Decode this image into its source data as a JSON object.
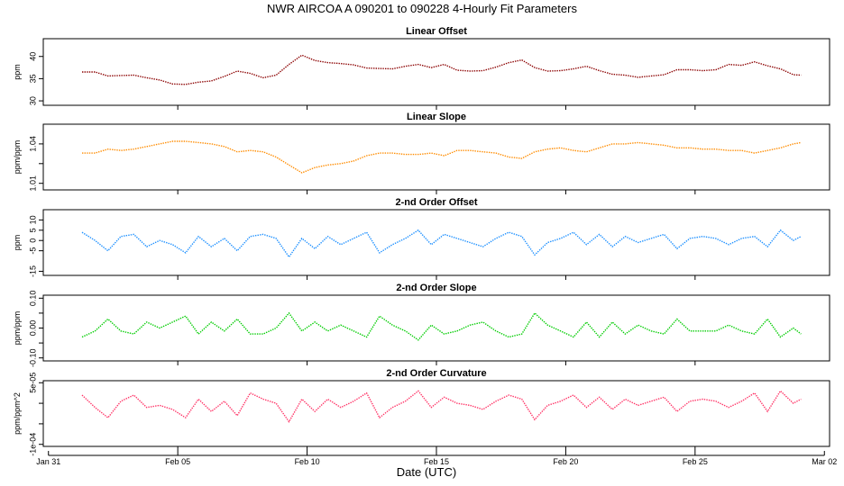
{
  "title": "NWR   AIRCOA A   090201 to 090228   4-Hourly Fit Parameters",
  "x_axis": {
    "label": "Date (UTC)",
    "ticks": [
      "Jan 31",
      "Feb 05",
      "Feb 10",
      "Feb 15",
      "Feb 20",
      "Feb 25",
      "Mar 02"
    ],
    "tick_days": [
      0,
      5,
      10,
      15,
      20,
      25,
      30
    ],
    "xlim": [
      -0.2,
      30.2
    ]
  },
  "chart_data": [
    {
      "type": "line",
      "title": "Linear Offset",
      "ylabel": "ppm",
      "color": "#8b0000",
      "ylim": [
        29,
        44
      ],
      "yticks": [
        30,
        35,
        40
      ],
      "ytick_labels": [
        "30",
        "35",
        "40"
      ],
      "x": [
        1.3,
        1.8,
        2.3,
        2.8,
        3.3,
        3.8,
        4.3,
        4.8,
        5.3,
        5.8,
        6.3,
        6.8,
        7.3,
        7.8,
        8.3,
        8.8,
        9.3,
        9.8,
        10.3,
        10.8,
        11.3,
        11.8,
        12.3,
        12.8,
        13.3,
        13.8,
        14.3,
        14.8,
        15.3,
        15.8,
        16.3,
        16.8,
        17.3,
        17.8,
        18.3,
        18.8,
        19.3,
        19.8,
        20.3,
        20.8,
        21.3,
        21.8,
        22.3,
        22.8,
        23.3,
        23.8,
        24.3,
        24.8,
        25.3,
        25.8,
        26.3,
        26.8,
        27.3,
        27.8,
        28.3,
        28.8,
        29.1
      ],
      "values": [
        36.5,
        36.5,
        35.6,
        35.7,
        35.8,
        35.2,
        34.7,
        33.8,
        33.7,
        34.2,
        34.5,
        35.5,
        36.7,
        36.2,
        35.2,
        35.8,
        38.2,
        40.3,
        39.1,
        38.6,
        38.4,
        38.1,
        37.4,
        37.3,
        37.2,
        37.8,
        38.2,
        37.5,
        38.2,
        36.9,
        36.7,
        36.8,
        37.6,
        38.6,
        39.2,
        37.5,
        36.7,
        36.8,
        37.2,
        37.8,
        36.8,
        36.0,
        35.8,
        35.3,
        35.6,
        35.9,
        37.0,
        37.0,
        36.8,
        37.0,
        38.2,
        38.0,
        38.8,
        37.9,
        37.2,
        35.9,
        35.8
      ]
    },
    {
      "type": "line",
      "title": "Linear Slope",
      "ylabel": "ppm/ppm",
      "color": "#ff8c00",
      "ylim": [
        1.005,
        1.055
      ],
      "yticks": [
        1.01,
        1.025,
        1.04
      ],
      "ytick_labels": [
        "1.01",
        "",
        "1.04"
      ],
      "x": [
        1.3,
        1.8,
        2.3,
        2.8,
        3.3,
        3.8,
        4.3,
        4.8,
        5.3,
        5.8,
        6.3,
        6.8,
        7.3,
        7.8,
        8.3,
        8.8,
        9.3,
        9.8,
        10.3,
        10.8,
        11.3,
        11.8,
        12.3,
        12.8,
        13.3,
        13.8,
        14.3,
        14.8,
        15.3,
        15.8,
        16.3,
        16.8,
        17.3,
        17.8,
        18.3,
        18.8,
        19.3,
        19.8,
        20.3,
        20.8,
        21.3,
        21.8,
        22.3,
        22.8,
        23.3,
        23.8,
        24.3,
        24.8,
        25.3,
        25.8,
        26.3,
        26.8,
        27.3,
        27.8,
        28.3,
        28.8,
        29.1
      ],
      "values": [
        1.033,
        1.033,
        1.036,
        1.035,
        1.036,
        1.038,
        1.04,
        1.042,
        1.042,
        1.041,
        1.04,
        1.038,
        1.034,
        1.035,
        1.034,
        1.03,
        1.024,
        1.018,
        1.022,
        1.024,
        1.025,
        1.027,
        1.031,
        1.033,
        1.033,
        1.032,
        1.032,
        1.033,
        1.031,
        1.035,
        1.035,
        1.034,
        1.033,
        1.03,
        1.029,
        1.034,
        1.036,
        1.037,
        1.035,
        1.034,
        1.037,
        1.04,
        1.04,
        1.041,
        1.04,
        1.039,
        1.037,
        1.037,
        1.036,
        1.036,
        1.035,
        1.035,
        1.033,
        1.035,
        1.037,
        1.04,
        1.041
      ]
    },
    {
      "type": "line",
      "title": "2-nd Order Offset",
      "ylabel": "ppm",
      "color": "#1e90ff",
      "ylim": [
        -17,
        15
      ],
      "yticks": [
        -15,
        -5,
        0,
        5,
        10
      ],
      "ytick_labels": [
        "-15",
        "-5",
        "0",
        "5",
        "10"
      ],
      "x": [
        1.3,
        1.8,
        2.3,
        2.8,
        3.3,
        3.8,
        4.3,
        4.8,
        5.3,
        5.8,
        6.3,
        6.8,
        7.3,
        7.8,
        8.3,
        8.8,
        9.3,
        9.8,
        10.3,
        10.8,
        11.3,
        11.8,
        12.3,
        12.8,
        13.3,
        13.8,
        14.3,
        14.8,
        15.3,
        15.8,
        16.3,
        16.8,
        17.3,
        17.8,
        18.3,
        18.8,
        19.3,
        19.8,
        20.3,
        20.8,
        21.3,
        21.8,
        22.3,
        22.8,
        23.3,
        23.8,
        24.3,
        24.8,
        25.3,
        25.8,
        26.3,
        26.8,
        27.3,
        27.8,
        28.3,
        28.8,
        29.1
      ],
      "values": [
        4,
        0,
        -5,
        2,
        3,
        -3,
        0,
        -2,
        -6,
        2,
        -3,
        1,
        -5,
        2,
        3,
        1,
        -8,
        1,
        -4,
        2,
        -2,
        1,
        4,
        -6,
        -2,
        1,
        5,
        -2,
        3,
        1,
        -1,
        -3,
        1,
        4,
        2,
        -7,
        -1,
        1,
        4,
        -2,
        3,
        -3,
        2,
        -1,
        1,
        3,
        -4,
        1,
        2,
        1,
        -2,
        1,
        2,
        -3,
        5,
        0,
        2
      ]
    },
    {
      "type": "line",
      "title": "2-nd Order Slope",
      "ylabel": "ppm/ppm",
      "color": "#00cc00",
      "ylim": [
        -0.11,
        0.11
      ],
      "yticks": [
        -0.1,
        -0.05,
        0.0,
        0.05,
        0.1
      ],
      "ytick_labels": [
        "-0.10",
        "",
        "0.00",
        "",
        "0.10"
      ],
      "x": [
        1.3,
        1.8,
        2.3,
        2.8,
        3.3,
        3.8,
        4.3,
        4.8,
        5.3,
        5.8,
        6.3,
        6.8,
        7.3,
        7.8,
        8.3,
        8.8,
        9.3,
        9.8,
        10.3,
        10.8,
        11.3,
        11.8,
        12.3,
        12.8,
        13.3,
        13.8,
        14.3,
        14.8,
        15.3,
        15.8,
        16.3,
        16.8,
        17.3,
        17.8,
        18.3,
        18.8,
        19.3,
        19.8,
        20.3,
        20.8,
        21.3,
        21.8,
        22.3,
        22.8,
        23.3,
        23.8,
        24.3,
        24.8,
        25.3,
        25.8,
        26.3,
        26.8,
        27.3,
        27.8,
        28.3,
        28.8,
        29.1
      ],
      "values": [
        -0.03,
        -0.01,
        0.03,
        -0.01,
        -0.02,
        0.02,
        0.0,
        0.02,
        0.04,
        -0.02,
        0.02,
        -0.01,
        0.03,
        -0.02,
        -0.02,
        0.0,
        0.05,
        -0.01,
        0.02,
        -0.01,
        0.01,
        -0.01,
        -0.03,
        0.04,
        0.01,
        -0.01,
        -0.04,
        0.01,
        -0.02,
        -0.01,
        0.01,
        0.02,
        -0.01,
        -0.03,
        -0.02,
        0.05,
        0.01,
        -0.01,
        -0.03,
        0.02,
        -0.03,
        0.02,
        -0.02,
        0.01,
        -0.01,
        -0.02,
        0.03,
        -0.01,
        -0.01,
        -0.01,
        0.01,
        -0.01,
        -0.02,
        0.03,
        -0.03,
        0.0,
        -0.02
      ]
    },
    {
      "type": "line",
      "title": "2-nd Order Curvature",
      "ylabel": "ppm/ppm^2",
      "color": "#ff3366",
      "ylim": [
        -0.000105,
        5.5e-05
      ],
      "yticks": [
        -0.0001,
        -5e-05,
        0.0,
        5e-05
      ],
      "ytick_labels": [
        "-1e-04",
        "",
        "",
        "5e-05"
      ],
      "x": [
        1.3,
        1.8,
        2.3,
        2.8,
        3.3,
        3.8,
        4.3,
        4.8,
        5.3,
        5.8,
        6.3,
        6.8,
        7.3,
        7.8,
        8.3,
        8.8,
        9.3,
        9.8,
        10.3,
        10.8,
        11.3,
        11.8,
        12.3,
        12.8,
        13.3,
        13.8,
        14.3,
        14.8,
        15.3,
        15.8,
        16.3,
        16.8,
        17.3,
        17.8,
        18.3,
        18.8,
        19.3,
        19.8,
        20.3,
        20.8,
        21.3,
        21.8,
        22.3,
        22.8,
        23.3,
        23.8,
        24.3,
        24.8,
        25.3,
        25.8,
        26.3,
        26.8,
        27.3,
        27.8,
        28.3,
        28.8,
        29.1
      ],
      "values": [
        2e-05,
        -1e-05,
        -3.5e-05,
        5e-06,
        2e-05,
        -1e-05,
        -5e-06,
        -1.5e-05,
        -3.5e-05,
        1e-05,
        -2e-05,
        5e-06,
        -3e-05,
        2.5e-05,
        1e-05,
        0.0,
        -4.5e-05,
        1e-05,
        -2e-05,
        1e-05,
        -1e-05,
        5e-06,
        2.5e-05,
        -3.5e-05,
        -1e-05,
        5e-06,
        3e-05,
        -1e-05,
        1.5e-05,
        0.0,
        -5e-06,
        -1.5e-05,
        5e-06,
        2e-05,
        1e-05,
        -4e-05,
        -5e-06,
        5e-06,
        2e-05,
        -1e-05,
        1.5e-05,
        -1.5e-05,
        1e-05,
        -5e-06,
        5e-06,
        1.5e-05,
        -2e-05,
        5e-06,
        1e-05,
        5e-06,
        -1e-05,
        5e-06,
        2.5e-05,
        -2e-05,
        3e-05,
        0.0,
        1e-05
      ]
    }
  ]
}
